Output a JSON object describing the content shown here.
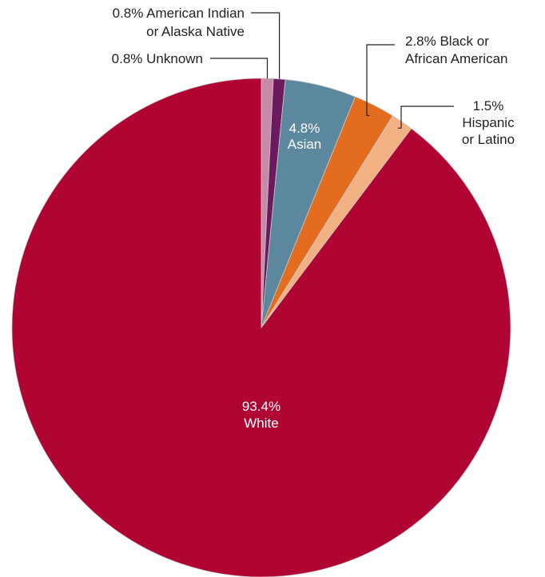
{
  "chart_data": {
    "type": "pie",
    "title": "",
    "start_angle_deg": 0,
    "direction": "clockwise",
    "slices": [
      {
        "category": "Unknown",
        "value": 0.8,
        "color": "#c68aa6",
        "label_lines": [
          "0.8% Unknown"
        ]
      },
      {
        "category": "American Indian or Alaska Native",
        "value": 0.8,
        "color": "#6b1a5e",
        "label_lines": [
          "0.8% American Indian",
          "or Alaska Native"
        ]
      },
      {
        "category": "Asian",
        "value": 4.8,
        "color": "#5b879f",
        "label_lines": [
          "4.8%",
          "Asian"
        ]
      },
      {
        "category": "Black or African American",
        "value": 2.8,
        "color": "#e36c1f",
        "label_lines": [
          "2.8% Black or",
          "African American"
        ]
      },
      {
        "category": "Hispanic or Latino",
        "value": 1.5,
        "color": "#f2b183",
        "label_lines": [
          "1.5%",
          "Hispanic",
          "or Latino"
        ]
      },
      {
        "category": "White",
        "value": 93.4,
        "color": "#b00433",
        "label_lines": [
          "93.4%",
          "White"
        ]
      }
    ]
  }
}
